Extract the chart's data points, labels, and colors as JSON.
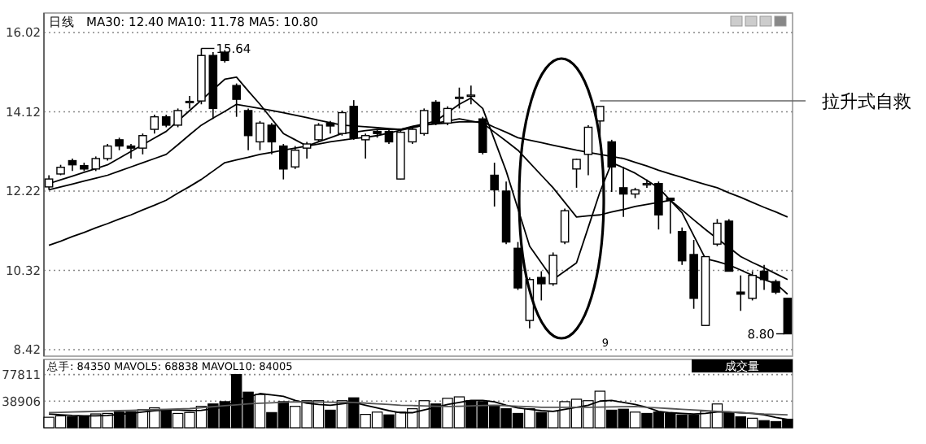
{
  "chart_data": [
    {
      "type": "candlestick",
      "categories": [
        null,
        null,
        null,
        null,
        null,
        null,
        null,
        null,
        null,
        null,
        null,
        null,
        null,
        null,
        null,
        null,
        null,
        null,
        null,
        null,
        null,
        null,
        null,
        null,
        null,
        null,
        null,
        null,
        null,
        null,
        null,
        null,
        null,
        null,
        null,
        null,
        null,
        null,
        null,
        null,
        null,
        null,
        null,
        null,
        null,
        null,
        null,
        null,
        null,
        null,
        null,
        null,
        null,
        null,
        null,
        null,
        null,
        null,
        null,
        null,
        null,
        null,
        null,
        null
      ],
      "ohlc": [
        [
          12.32,
          12.6,
          12.25,
          12.51
        ],
        [
          12.63,
          12.85,
          12.6,
          12.79
        ],
        [
          12.95,
          13.0,
          12.7,
          12.85
        ],
        [
          12.83,
          12.9,
          12.7,
          12.75
        ],
        [
          12.75,
          13.05,
          12.7,
          13.0
        ],
        [
          13.0,
          13.35,
          12.95,
          13.3
        ],
        [
          13.45,
          13.5,
          13.2,
          13.3
        ],
        [
          13.3,
          13.35,
          13.0,
          13.25
        ],
        [
          13.25,
          13.6,
          13.1,
          13.55
        ],
        [
          13.7,
          14.05,
          13.6,
          14.0
        ],
        [
          14.0,
          14.05,
          13.75,
          13.8
        ],
        [
          13.8,
          14.2,
          13.75,
          14.15
        ],
        [
          14.35,
          14.5,
          14.2,
          14.37
        ],
        [
          14.38,
          15.64,
          14.3,
          15.47
        ],
        [
          15.47,
          15.55,
          13.95,
          14.2
        ],
        [
          15.55,
          15.6,
          15.3,
          15.35
        ],
        [
          14.75,
          14.8,
          14.0,
          14.42
        ],
        [
          14.15,
          14.2,
          13.2,
          13.55
        ],
        [
          13.4,
          13.9,
          13.2,
          13.85
        ],
        [
          13.8,
          13.85,
          13.1,
          13.4
        ],
        [
          13.3,
          13.35,
          12.5,
          12.75
        ],
        [
          12.8,
          13.3,
          12.75,
          13.2
        ],
        [
          13.25,
          13.4,
          13.0,
          13.35
        ],
        [
          13.45,
          13.85,
          13.4,
          13.8
        ],
        [
          13.85,
          13.9,
          13.6,
          13.78
        ],
        [
          13.6,
          14.15,
          13.55,
          14.1
        ],
        [
          14.25,
          14.4,
          13.45,
          13.5
        ],
        [
          13.45,
          13.6,
          13.0,
          13.55
        ],
        [
          13.65,
          13.7,
          13.5,
          13.6
        ],
        [
          13.65,
          13.7,
          13.35,
          13.4
        ],
        [
          12.51,
          13.7,
          12.5,
          13.63
        ],
        [
          13.4,
          13.75,
          13.35,
          13.7
        ],
        [
          13.6,
          14.2,
          13.55,
          14.15
        ],
        [
          14.35,
          14.4,
          13.8,
          13.85
        ],
        [
          13.85,
          14.25,
          13.8,
          14.2
        ],
        [
          14.45,
          14.7,
          14.2,
          14.47
        ],
        [
          14.5,
          14.75,
          14.3,
          14.52
        ],
        [
          13.95,
          14.0,
          13.1,
          13.15
        ],
        [
          12.6,
          12.9,
          11.85,
          12.25
        ],
        [
          12.22,
          12.45,
          10.95,
          11.0
        ],
        [
          10.85,
          11.0,
          9.85,
          9.9
        ],
        [
          9.12,
          10.15,
          8.93,
          10.1
        ],
        [
          10.15,
          10.3,
          9.6,
          10.0
        ],
        [
          10.0,
          10.75,
          9.95,
          10.68
        ],
        [
          11.0,
          11.8,
          10.95,
          11.75
        ],
        [
          12.75,
          13.0,
          12.3,
          12.98
        ],
        [
          13.1,
          13.8,
          12.6,
          13.75
        ],
        [
          13.9,
          14.25,
          13.55,
          14.25
        ],
        [
          13.4,
          13.45,
          12.2,
          12.8
        ],
        [
          12.3,
          12.8,
          11.6,
          12.15
        ],
        [
          12.15,
          12.3,
          12.05,
          12.25
        ],
        [
          12.38,
          12.5,
          12.3,
          12.4
        ],
        [
          12.4,
          12.45,
          11.3,
          11.65
        ],
        [
          12.05,
          12.05,
          11.2,
          12.0
        ],
        [
          11.25,
          11.35,
          10.45,
          10.55
        ],
        [
          10.7,
          11.05,
          9.4,
          9.65
        ],
        [
          9.0,
          10.65,
          9.0,
          10.65
        ],
        [
          10.95,
          11.55,
          10.9,
          11.45
        ],
        [
          11.5,
          11.55,
          10.3,
          10.3
        ],
        [
          9.8,
          10.2,
          9.35,
          9.75
        ],
        [
          9.65,
          10.3,
          9.6,
          10.2
        ],
        [
          10.3,
          10.45,
          9.85,
          10.1
        ],
        [
          10.05,
          10.1,
          9.75,
          9.8
        ],
        [
          9.65,
          9.65,
          8.8,
          8.8
        ]
      ],
      "series": [
        {
          "type": "line",
          "color": "#000000",
          "values": [
            12.4,
            12.49,
            12.58,
            12.67,
            12.76,
            12.85,
            13.01,
            13.17,
            13.33,
            13.49,
            13.65,
            13.9,
            14.15,
            14.4,
            14.65,
            14.9,
            14.95,
            14.62,
            14.3,
            13.95,
            13.6,
            13.45,
            13.3,
            13.4,
            13.5,
            13.6,
            13.63,
            13.67,
            13.7,
            13.7,
            13.7,
            13.77,
            13.83,
            13.9,
            14.1,
            14.3,
            14.45,
            14.2,
            13.45,
            12.7,
            11.8,
            10.9,
            10.5,
            10.1,
            10.3,
            10.5,
            11.35,
            12.2,
            12.9,
            12.78,
            12.65,
            12.48,
            12.3,
            12.0,
            11.7,
            11.15,
            10.6,
            10.53,
            10.45,
            10.33,
            10.2,
            10.1,
            10.0,
            9.75
          ]
        },
        {
          "type": "line",
          "color": "#000000",
          "values": [
            12.25,
            12.32,
            12.39,
            12.46,
            12.53,
            12.6,
            12.7,
            12.8,
            12.9,
            13.0,
            13.1,
            13.33,
            13.57,
            13.8,
            13.97,
            14.13,
            14.3,
            14.25,
            14.2,
            14.15,
            14.1,
            14.04,
            13.98,
            13.92,
            13.86,
            13.8,
            13.78,
            13.76,
            13.74,
            13.72,
            13.7,
            13.75,
            13.8,
            13.85,
            13.9,
            13.95,
            13.9,
            13.85,
            13.63,
            13.42,
            13.2,
            12.9,
            12.6,
            12.3,
            11.95,
            11.6,
            11.63,
            11.65,
            11.72,
            11.78,
            11.85,
            11.9,
            11.95,
            12.0,
            11.77,
            11.53,
            11.3,
            11.08,
            10.87,
            10.65,
            10.51,
            10.38,
            10.24,
            10.1
          ]
        },
        {
          "type": "line",
          "color": "#000000",
          "values": [
            10.92,
            11.02,
            11.13,
            11.23,
            11.34,
            11.44,
            11.55,
            11.65,
            11.77,
            11.88,
            12.0,
            12.17,
            12.33,
            12.5,
            12.7,
            12.9,
            12.97,
            13.03,
            13.1,
            13.15,
            13.2,
            13.25,
            13.3,
            13.35,
            13.4,
            13.44,
            13.48,
            13.51,
            13.55,
            13.61,
            13.68,
            13.74,
            13.8,
            13.83,
            13.85,
            13.88,
            13.88,
            13.88,
            13.75,
            13.63,
            13.5,
            13.44,
            13.38,
            13.32,
            13.26,
            13.2,
            13.15,
            13.1,
            13.05,
            13.0,
            12.91,
            12.82,
            12.72,
            12.63,
            12.55,
            12.46,
            12.38,
            12.3,
            12.18,
            12.07,
            11.95,
            11.83,
            11.72,
            11.6
          ]
        }
      ],
      "ylim": [
        8.42,
        16.02
      ],
      "yticks": [
        16.02,
        14.12,
        12.22,
        10.32,
        8.42
      ],
      "grid": "y",
      "legend": false,
      "annotations": [
        "日线",
        "MA30: 12.40 MA10: 11.78 MA5: 10.80",
        {
          "text": "15.64",
          "y": 15.64
        },
        "8.80",
        "拉升式自救",
        "9"
      ]
    },
    {
      "type": "bar",
      "categories": [
        null,
        null,
        null,
        null,
        null,
        null,
        null,
        null,
        null,
        null,
        null,
        null,
        null,
        null,
        null,
        null,
        null,
        null,
        null,
        null,
        null,
        null,
        null,
        null,
        null,
        null,
        null,
        null,
        null,
        null,
        null,
        null,
        null,
        null,
        null,
        null,
        null,
        null,
        null,
        null,
        null,
        null,
        null,
        null,
        null,
        null,
        null,
        null,
        null,
        null,
        null,
        null,
        null,
        null,
        null,
        null,
        null,
        null,
        null,
        null,
        null,
        null,
        null,
        null
      ],
      "series": [
        {
          "type": "bar",
          "values": [
            15300,
            17400,
            16000,
            16000,
            20200,
            20900,
            22900,
            23600,
            26400,
            29200,
            24300,
            20900,
            22200,
            31300,
            34800,
            38200,
            77800,
            52100,
            48700,
            22200,
            38200,
            31300,
            39600,
            39600,
            25700,
            39600,
            43800,
            19500,
            22900,
            18800,
            22900,
            27800,
            39600,
            34800,
            43100,
            45200,
            39600,
            38200,
            32700,
            27800,
            20900,
            27800,
            22200,
            24300,
            38200,
            41700,
            39600,
            53500,
            25700,
            27100,
            22900,
            20900,
            22900,
            20900,
            18800,
            18800,
            24300,
            34800,
            22200,
            16000,
            13900,
            10400,
            9000,
            12500
          ],
          "colors": [
            "#ffffff",
            "#ffffff",
            "#000000",
            "#000000",
            "#ffffff",
            "#ffffff",
            "#000000",
            "#000000",
            "#ffffff",
            "#ffffff",
            "#000000",
            "#ffffff",
            "#ffffff",
            "#ffffff",
            "#000000",
            "#000000",
            "#000000",
            "#000000",
            "#ffffff",
            "#000000",
            "#000000",
            "#ffffff",
            "#ffffff",
            "#ffffff",
            "#000000",
            "#ffffff",
            "#000000",
            "#ffffff",
            "#ffffff",
            "#000000",
            "#ffffff",
            "#ffffff",
            "#ffffff",
            "#000000",
            "#ffffff",
            "#ffffff",
            "#000000",
            "#000000",
            "#000000",
            "#000000",
            "#000000",
            "#ffffff",
            "#000000",
            "#ffffff",
            "#ffffff",
            "#ffffff",
            "#ffffff",
            "#ffffff",
            "#000000",
            "#000000",
            "#ffffff",
            "#000000",
            "#000000",
            "#000000",
            "#000000",
            "#000000",
            "#ffffff",
            "#ffffff",
            "#000000",
            "#000000",
            "#ffffff",
            "#000000",
            "#000000",
            "#000000"
          ]
        },
        {
          "type": "line",
          "color": "#000000",
          "values": [
            20000,
            19000,
            18000,
            17500,
            17500,
            18000,
            19500,
            21000,
            23000,
            25000,
            26000,
            26000,
            25000,
            25500,
            28000,
            30000,
            40000,
            45000,
            50000,
            48000,
            46000,
            40000,
            36000,
            34000,
            33000,
            35000,
            37000,
            33000,
            29000,
            25000,
            22000,
            22000,
            26000,
            30000,
            34000,
            37000,
            40000,
            40000,
            38000,
            33000,
            29000,
            27000,
            25000,
            24000,
            27000,
            30000,
            33000,
            39000,
            40000,
            37000,
            34000,
            30000,
            24000,
            22000,
            21000,
            20000,
            21000,
            23000,
            23000,
            22000,
            21000,
            19000,
            15000,
            12000
          ]
        },
        {
          "type": "line",
          "color": "#555555",
          "values": [
            22000,
            22500,
            23000,
            23500,
            24000,
            24500,
            25000,
            25500,
            26000,
            26500,
            27000,
            27500,
            28000,
            29400,
            30800,
            32200,
            33600,
            35000,
            35800,
            36500,
            37300,
            38000,
            37800,
            37600,
            37400,
            37200,
            37000,
            36000,
            35000,
            34000,
            33000,
            32500,
            32000,
            31500,
            31000,
            31500,
            32000,
            32500,
            33000,
            32300,
            31500,
            30800,
            30000,
            30000,
            30000,
            30000,
            30000,
            30300,
            30500,
            30800,
            31000,
            30000,
            29000,
            28000,
            27000,
            26000,
            25000,
            24000,
            23000,
            22000,
            21000,
            20000,
            19500,
            19000
          ]
        }
      ],
      "ylim": [
        0,
        100000
      ],
      "yticks": [
        38906,
        77811
      ],
      "grid": "y",
      "legend": false,
      "annotations": [
        "总手: 84350 MAVOL5: 68838 MAVOL10: 84005",
        "成交量"
      ]
    }
  ]
}
